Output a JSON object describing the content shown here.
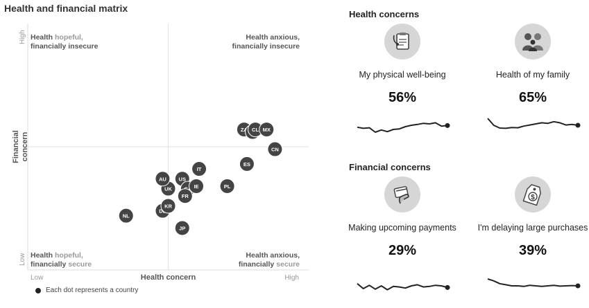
{
  "title": "Health and financial matrix",
  "quadrants": {
    "top_left": {
      "line1_strong": "Health",
      "line1_muted": "hopeful,",
      "line2": "financially insecure"
    },
    "top_right": {
      "line1": "Health anxious,",
      "line2": "financially insecure"
    },
    "bottom_left": {
      "line1_strong": "Health",
      "line1_muted": "hopeful,",
      "line2_strong": "financially",
      "line2_muted": "secure"
    },
    "bottom_right": {
      "line1": "Health anxious,",
      "line2_strong": "financially",
      "line2_muted": "secure"
    }
  },
  "legend": {
    "text": "Each dot represents a country"
  },
  "colors": {
    "dot": "#444444",
    "axis": "#e3e3e3",
    "label": "#999999",
    "spark": "#222222"
  },
  "chart_data": {
    "type": "scatter",
    "title": "Health and financial matrix",
    "xlabel": "Health concern",
    "ylabel": "Financial concern",
    "xticks": [
      "Low",
      "High"
    ],
    "yticks": [
      "Low",
      "High"
    ],
    "xlim": [
      0,
      100
    ],
    "ylim": [
      0,
      100
    ],
    "grid": false,
    "points": [
      {
        "label": "NL",
        "x": 35,
        "y": 22
      },
      {
        "label": "DE",
        "x": 48,
        "y": 24
      },
      {
        "label": "KR",
        "x": 50,
        "y": 26
      },
      {
        "label": "JP",
        "x": 55,
        "y": 17
      },
      {
        "label": "UK",
        "x": 50,
        "y": 33
      },
      {
        "label": "AU",
        "x": 48,
        "y": 37
      },
      {
        "label": "US",
        "x": 55,
        "y": 37
      },
      {
        "label": "CA",
        "x": 57,
        "y": 33
      },
      {
        "label": "FR",
        "x": 56,
        "y": 30
      },
      {
        "label": "IE",
        "x": 60,
        "y": 34
      },
      {
        "label": "IT",
        "x": 61,
        "y": 41
      },
      {
        "label": "PL",
        "x": 71,
        "y": 34
      },
      {
        "label": "ES",
        "x": 78,
        "y": 43
      },
      {
        "label": "ZA",
        "x": 77,
        "y": 57
      },
      {
        "label": "IN",
        "x": 80,
        "y": 56
      },
      {
        "label": "CL",
        "x": 81,
        "y": 57
      },
      {
        "label": "MX",
        "x": 85,
        "y": 57
      },
      {
        "label": "CN",
        "x": 88,
        "y": 49
      }
    ]
  },
  "health_concerns": {
    "heading": "Health concerns",
    "items": [
      {
        "label": "My physical well-being",
        "value": "56%",
        "icon": "medical-clipboard-icon",
        "trend": [
          48,
          44,
          46,
          30,
          38,
          32,
          40,
          42,
          50,
          55,
          58,
          62,
          60,
          64,
          52,
          54
        ]
      },
      {
        "label": "Health of my family",
        "value": "65%",
        "icon": "family-icon",
        "trend": [
          80,
          55,
          45,
          44,
          47,
          46,
          52,
          56,
          60,
          64,
          62,
          68,
          64,
          56,
          58,
          55
        ]
      }
    ]
  },
  "financial_concerns": {
    "heading": "Financial concerns",
    "items": [
      {
        "label": "Making upcoming payments",
        "value": "29%",
        "icon": "card-payment-icon",
        "trend": [
          38,
          20,
          32,
          18,
          30,
          16,
          28,
          26,
          22,
          30,
          34,
          26,
          28,
          32,
          30,
          24
        ]
      },
      {
        "label": "I'm delaying large purchases",
        "value": "39%",
        "icon": "price-tag-icon",
        "trend": [
          55,
          48,
          38,
          34,
          30,
          30,
          28,
          32,
          30,
          28,
          30,
          32,
          29,
          30,
          31,
          30
        ]
      }
    ]
  }
}
